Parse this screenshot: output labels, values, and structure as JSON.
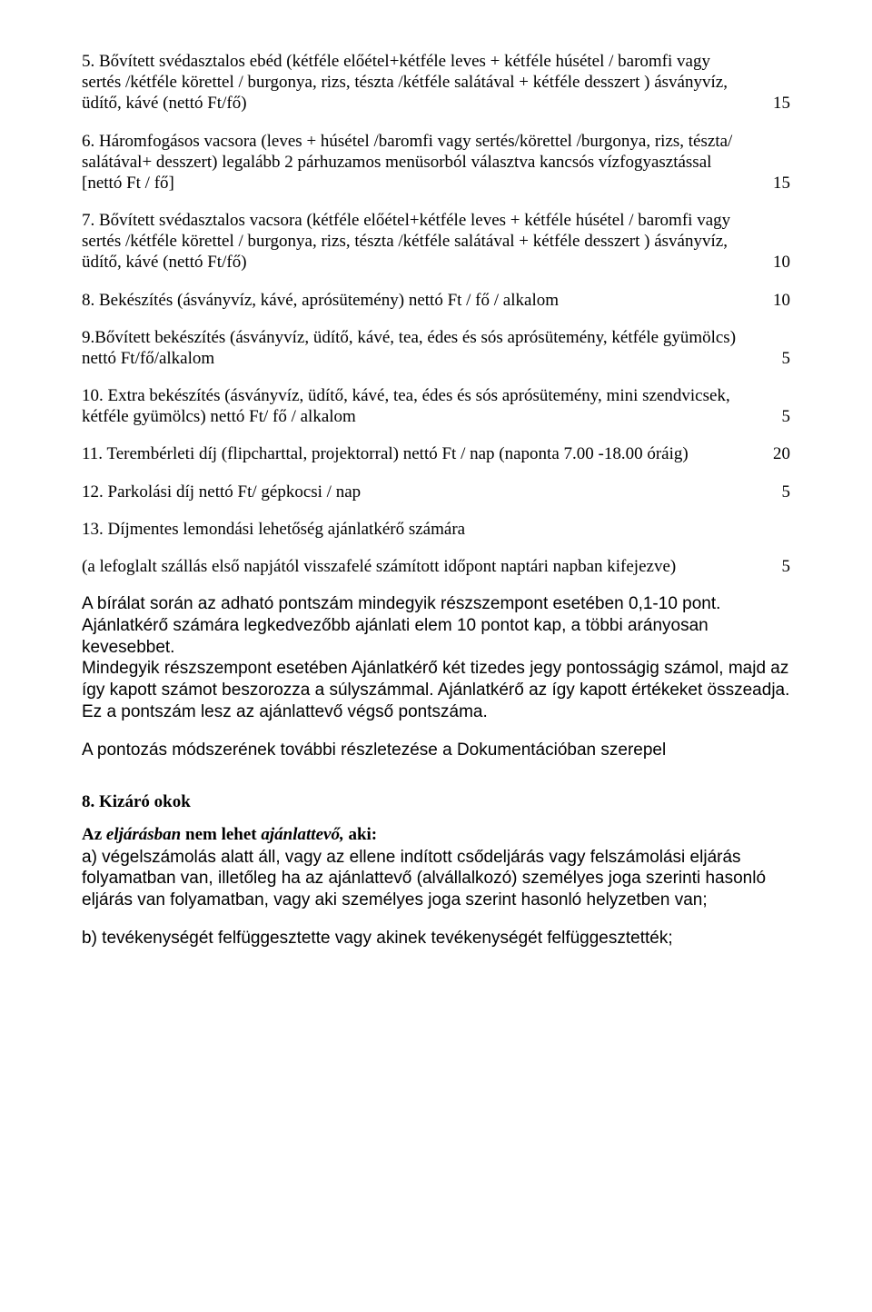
{
  "items": [
    {
      "text": "5. Bővített svédasztalos ebéd (kétféle előétel+kétféle leves + kétféle húsétel / baromfi vagy sertés /kétféle körettel / burgonya, rizs, tészta /kétféle salátával + kétféle desszert ) ásványvíz, üdítő, kávé (nettó Ft/fő)",
      "num": "15"
    },
    {
      "text": "6. Háromfogásos vacsora (leves + húsétel /baromfi vagy sertés/körettel /burgonya, rizs, tészta/ salátával+ desszert) legalább 2 párhuzamos menüsorból választva kancsós vízfogyasztással [nettó Ft / fő]",
      "num": "15"
    },
    {
      "text": "7. Bővített svédasztalos vacsora (kétféle előétel+kétféle leves + kétféle húsétel / baromfi vagy sertés /kétféle körettel / burgonya, rizs, tészta /kétféle salátával + kétféle desszert ) ásványvíz, üdítő, kávé (nettó Ft/fő)",
      "num": "10"
    },
    {
      "text": "8. Bekészítés (ásványvíz, kávé, aprósütemény) nettó Ft / fő / alkalom",
      "num": "10"
    },
    {
      "text": "9.Bővített bekészítés (ásványvíz, üdítő, kávé, tea, édes és sós aprósütemény, kétféle gyümölcs) nettó Ft/fő/alkalom",
      "num": "5"
    },
    {
      "text": "10. Extra bekészítés (ásványvíz, üdítő, kávé, tea, édes és sós aprósütemény, mini szendvicsek, kétféle gyümölcs) nettó Ft/ fő / alkalom",
      "num": "5"
    },
    {
      "text": "11. Terembérleti díj (flipcharttal, projektorral) nettó Ft / nap (naponta 7.00 -18.00 óráig)",
      "num": "20"
    },
    {
      "text": "12. Parkolási díj nettó Ft/ gépkocsi / nap",
      "num": "5"
    }
  ],
  "item13": "13. Díjmentes lemondási lehetőség ajánlatkérő számára",
  "item13_sub": {
    "text": "(a lefoglalt szállás első napjától visszafelé számított időpont naptári napban kifejezve)",
    "num": "5"
  },
  "sans_block1": "A bírálat során az adható pontszám mindegyik részszempont esetében 0,1-10 pont. Ajánlatkérő számára legkedvezőbb ajánlati elem 10 pontot kap, a többi arányosan kevesebbet.\nMindegyik részszempont esetében Ajánlatkérő két tizedes jegy pontosságig számol, majd az így kapott számot beszorozza a súlyszámmal. Ajánlatkérő az így kapott értékeket összeadja. Ez a pontszám lesz az ajánlattevő végső pontszáma.",
  "sans_block2": "A pontozás módszerének további részletezése a Dokumentációban szerepel",
  "section8_title": "8. Kizáró okok",
  "section8_line_pre": "Az ",
  "section8_line_em1": "eljárásban",
  "section8_line_mid": " nem lehet ",
  "section8_line_em2": "ajánlattevő,",
  "section8_line_post": " aki:",
  "section8_a": "a) végelszámolás alatt áll, vagy az ellene indított csődeljárás vagy felszámolási eljárás folyamatban van, illetőleg ha az ajánlattevő (alvállalkozó) személyes joga szerinti hasonló eljárás van folyamatban, vagy aki személyes joga szerint hasonló helyzetben van;",
  "section8_b": "b) tevékenységét felfüggesztette vagy akinek tevékenységét felfüggesztették;"
}
